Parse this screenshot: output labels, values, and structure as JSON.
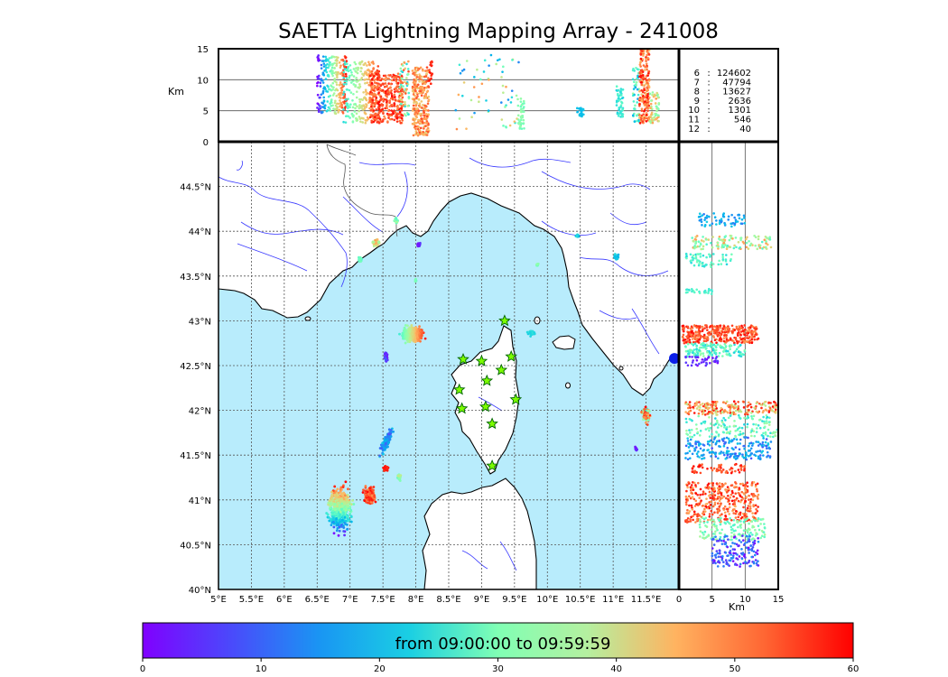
{
  "figure": {
    "title": "SAETTA Lightning Mapping Array - 241008",
    "top_ylabel": "Km",
    "right_xlabel": "Km"
  },
  "colors": {
    "sea": "#b8ecfc",
    "land": "#ffffff",
    "coast": "#000000",
    "rivers": "#3a3aff",
    "borders": "#555555",
    "grid": "#555555",
    "station_fill": "#7cfc00",
    "station_edge": "#006400",
    "table_highlight": "#ff0000"
  },
  "chart_data": [
    {
      "type": "scatter",
      "panel": "altitude-vs-longitude",
      "xlim": [
        5,
        12
      ],
      "ylim": [
        0,
        15
      ],
      "ylabel": "Km",
      "yticks": [
        "0",
        "5",
        "10",
        "15"
      ],
      "color_encoding": "minutes after 09:00:00",
      "clusters": [
        {
          "lon": [
            6.5,
            6.9
          ],
          "alt": [
            5,
            14
          ],
          "t": "mixed 0-60"
        },
        {
          "lon": [
            6.9,
            7.7
          ],
          "alt": [
            3,
            13
          ],
          "t": "mixed 20-60"
        },
        {
          "lon": [
            7.4,
            7.9
          ],
          "alt": [
            3,
            11
          ],
          "t": "50-60"
        },
        {
          "lon": [
            7.95,
            8.2
          ],
          "alt": [
            1,
            12
          ],
          "t": "45-55"
        },
        {
          "lon": [
            8.7,
            9.6
          ],
          "alt": [
            1,
            15
          ],
          "t": "10-50 sparse"
        },
        {
          "lon": [
            9.7,
            10.1
          ],
          "alt": [
            3,
            8
          ],
          "t": "35-40"
        },
        {
          "lon": [
            10.4,
            10.6
          ],
          "alt": [
            4,
            6
          ],
          "t": "15-20"
        },
        {
          "lon": [
            11.0,
            11.7
          ],
          "alt": [
            3,
            15
          ],
          "t": "mixed 10-60"
        }
      ]
    },
    {
      "type": "table",
      "panel": "source-count-by-hour",
      "columns": [
        "hour",
        "count"
      ],
      "rows": [
        {
          "hour": "6",
          "sep": ":",
          "count": "124602",
          "highlight": false
        },
        {
          "hour": "7",
          "sep": ":",
          "count": "47794",
          "highlight": true
        },
        {
          "hour": "8",
          "sep": ":",
          "count": "13627",
          "highlight": false
        },
        {
          "hour": "9",
          "sep": ":",
          "count": "2636",
          "highlight": false
        },
        {
          "hour": "10",
          "sep": ":",
          "count": "1301",
          "highlight": false
        },
        {
          "hour": "11",
          "sep": ":",
          "count": "546",
          "highlight": false
        },
        {
          "hour": "12",
          "sep": ":",
          "count": "40",
          "highlight": false
        }
      ]
    },
    {
      "type": "scatter",
      "panel": "plan-view-map",
      "xlim": [
        5,
        12
      ],
      "ylim": [
        40,
        45
      ],
      "xticks": [
        "5°E",
        "5.5°E",
        "6°E",
        "6.5°E",
        "7°E",
        "7.5°E",
        "8°E",
        "8.5°E",
        "9°E",
        "9.5°E",
        "10°E",
        "10.5°E",
        "11°E",
        "11.5°E"
      ],
      "yticks": [
        "40°N",
        "40.5°N",
        "41°N",
        "41.5°N",
        "42°N",
        "42.5°N",
        "43°N",
        "43.5°N",
        "44°N",
        "44.5°N"
      ],
      "clusters": [
        {
          "lon": 6.8,
          "lat": 40.85,
          "t": "0-60 mixed"
        },
        {
          "lon": 7.35,
          "lat": 41.05,
          "t": "50-60"
        },
        {
          "lon": 7.5,
          "lat": 41.65,
          "t": "10-20"
        },
        {
          "lon": 7.55,
          "lat": 41.35,
          "t": "55-60"
        },
        {
          "lon": 7.75,
          "lat": 41.25,
          "t": "35-40"
        },
        {
          "lon": 7.95,
          "lat": 42.85,
          "t": "30-58"
        },
        {
          "lon": 7.55,
          "lat": 42.6,
          "t": "0-8"
        },
        {
          "lon": 7.4,
          "lat": 43.82,
          "t": "40-50"
        },
        {
          "lon": 7.7,
          "lat": 44.12,
          "t": "30-45"
        },
        {
          "lon": 8.05,
          "lat": 43.85,
          "t": "0-8"
        },
        {
          "lon": 9.85,
          "lat": 43.62,
          "t": "35-40"
        },
        {
          "lon": 10.45,
          "lat": 43.95,
          "t": "15-20"
        },
        {
          "lon": 11.05,
          "lat": 43.72,
          "t": "15-25"
        },
        {
          "lon": 11.5,
          "lat": 41.95,
          "t": "30-58"
        },
        {
          "lon": 11.35,
          "lat": 41.57,
          "t": "0-5"
        },
        {
          "lon": 8.05,
          "lat": 43.45,
          "t": "30"
        }
      ],
      "stations": [
        {
          "lon": 9.35,
          "lat": 43.0
        },
        {
          "lon": 8.72,
          "lat": 42.57
        },
        {
          "lon": 9.0,
          "lat": 42.55
        },
        {
          "lon": 9.45,
          "lat": 42.6
        },
        {
          "lon": 9.3,
          "lat": 42.45
        },
        {
          "lon": 9.08,
          "lat": 42.33
        },
        {
          "lon": 8.66,
          "lat": 42.23
        },
        {
          "lon": 9.52,
          "lat": 42.12
        },
        {
          "lon": 8.7,
          "lat": 42.02
        },
        {
          "lon": 9.06,
          "lat": 42.04
        },
        {
          "lon": 9.16,
          "lat": 41.85
        },
        {
          "lon": 9.16,
          "lat": 41.38
        }
      ]
    },
    {
      "type": "scatter",
      "panel": "latitude-vs-altitude",
      "xlim": [
        0,
        15
      ],
      "ylim": [
        40,
        45
      ],
      "xlabel": "Km",
      "xticks": [
        "0",
        "5",
        "10",
        "15"
      ]
    },
    {
      "type": "heatmap",
      "panel": "time-colorbar",
      "colormap": "rainbow",
      "range": [
        0,
        60
      ],
      "ticks": [
        "0",
        "10",
        "20",
        "30",
        "40",
        "50",
        "60"
      ],
      "label": "from 09:00:00 to 09:59:59"
    }
  ]
}
